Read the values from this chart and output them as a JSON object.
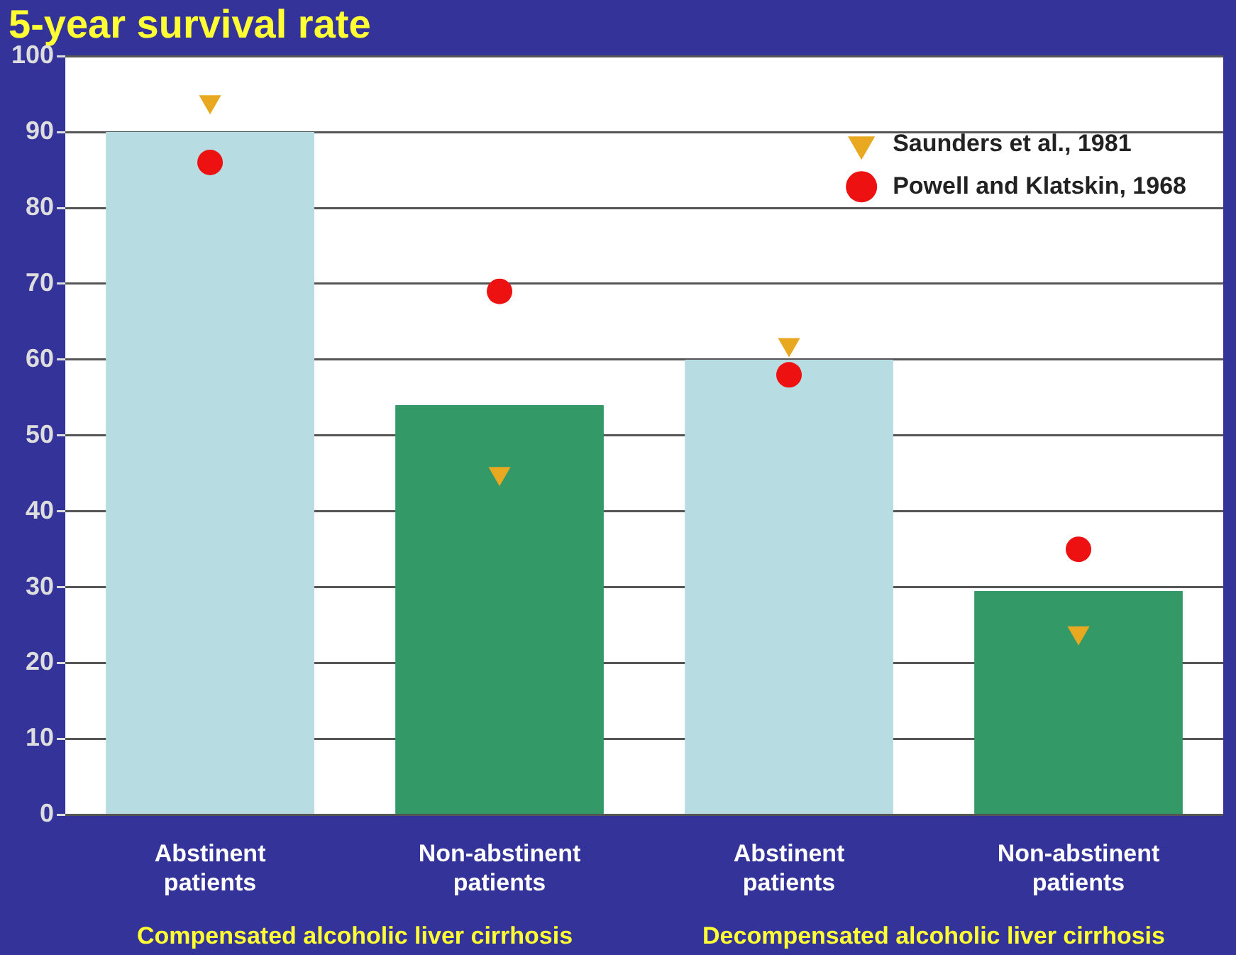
{
  "chart_data": {
    "type": "bar",
    "title": "5-year survival rate",
    "categories": [
      "Abstinent patients",
      "Non-abstinent patients",
      "Abstinent patients",
      "Non-abstinent patients"
    ],
    "values": [
      90,
      54,
      60,
      29.5
    ],
    "colors": [
      "#b7dde2",
      "#339966",
      "#b7dde2",
      "#339966"
    ],
    "series": [
      {
        "name": "Saunders et al., 1981",
        "type": "scatter",
        "marker": "triangle",
        "color": "#e8a820",
        "values": [
          94,
          45,
          62,
          24
        ]
      },
      {
        "name": "Powell and Klatskin, 1968",
        "type": "scatter",
        "marker": "circle",
        "color": "#ee1111",
        "values": [
          86,
          69,
          58,
          35
        ]
      }
    ],
    "ylim": [
      0,
      100
    ],
    "yticks": [
      0,
      10,
      20,
      30,
      40,
      50,
      60,
      70,
      80,
      90,
      100
    ],
    "grid": "y",
    "legend": "top right",
    "annotations": [
      "Compensated alcoholic liver cirrhosis",
      "Decompensated alcoholic liver cirrhosis"
    ]
  }
}
